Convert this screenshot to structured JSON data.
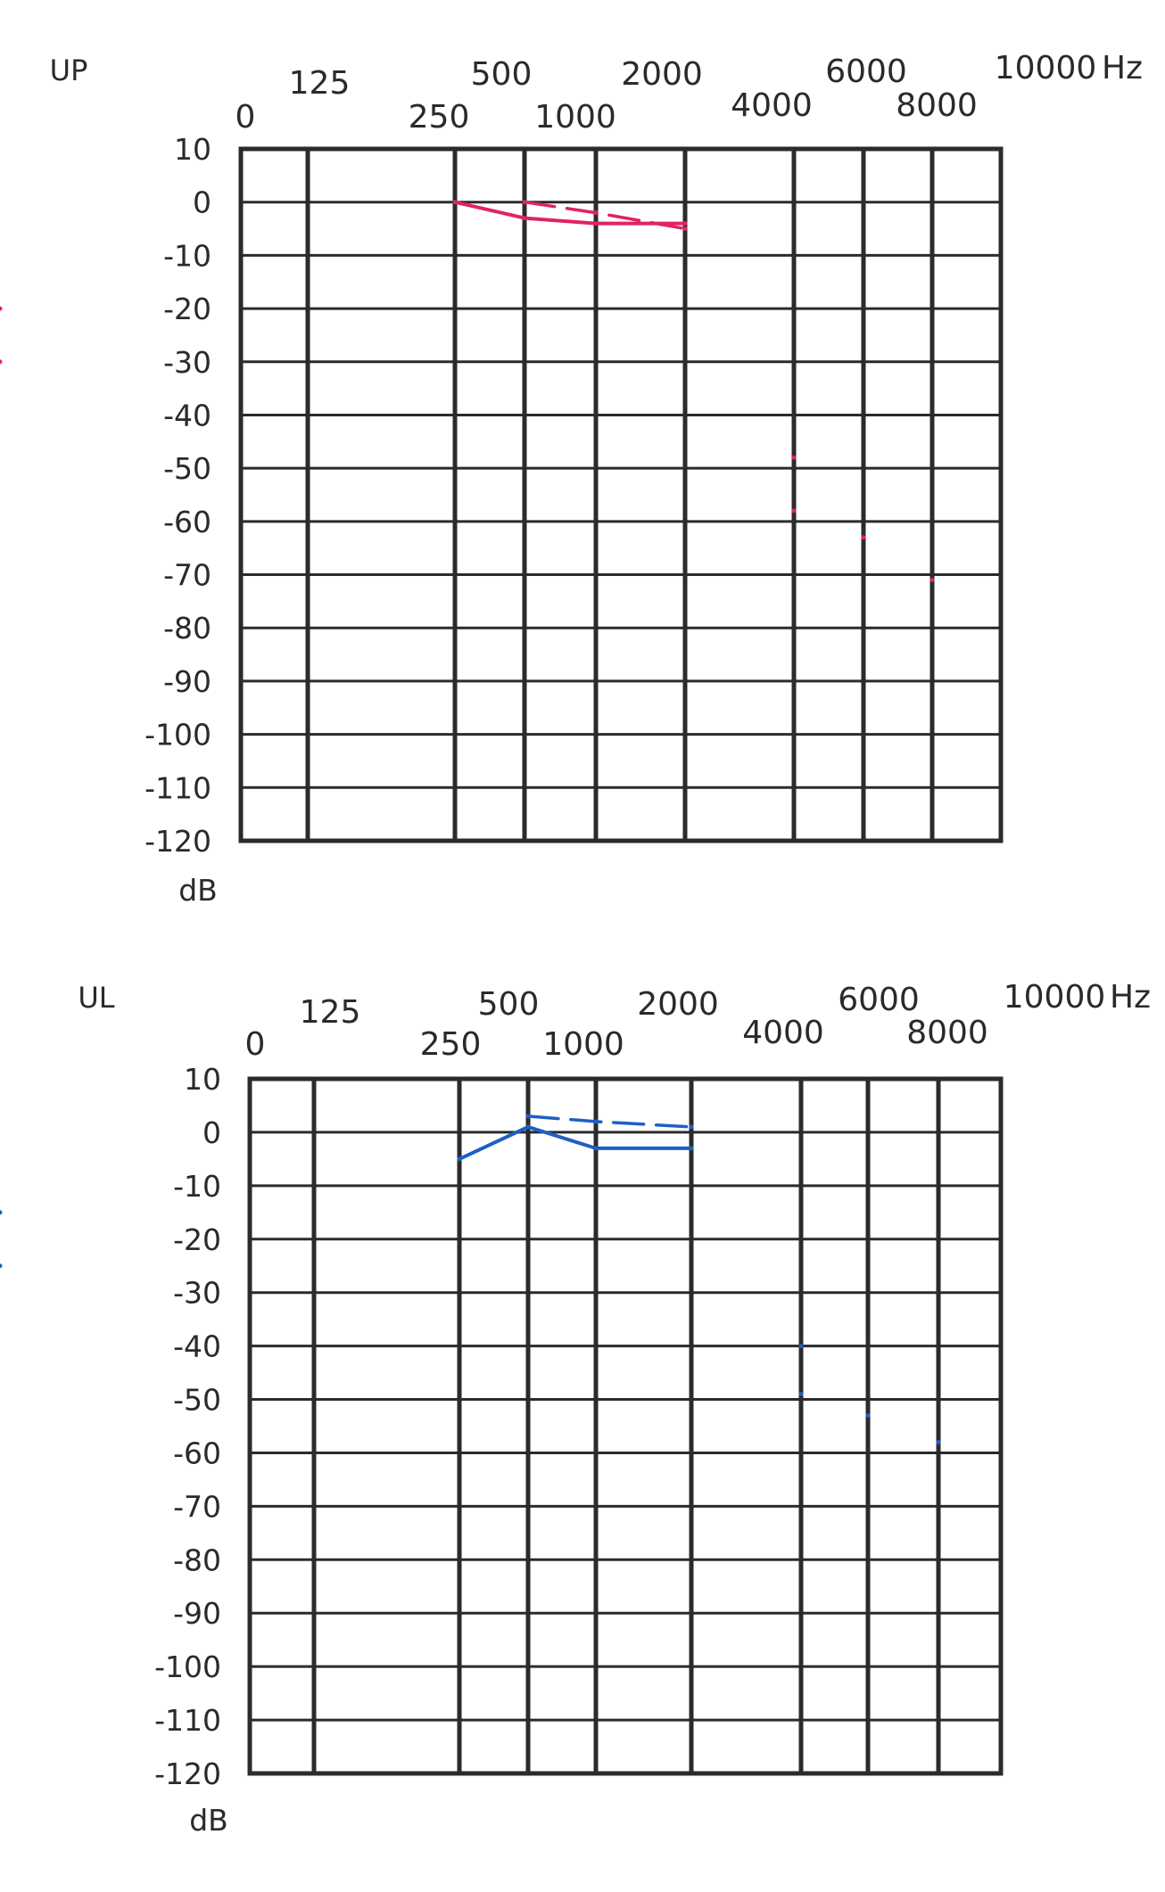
{
  "chart_data": [
    {
      "type": "line",
      "title": "UP",
      "xunit": "Hz",
      "yunit": "dB",
      "x_tick_labels": [
        "0",
        "125",
        "250",
        "500",
        "1000",
        "2000",
        "4000",
        "6000",
        "8000",
        "10000"
      ],
      "y_tick_labels": [
        "10",
        "0",
        "-10",
        "-20",
        "-30",
        "-40",
        "-50",
        "-60",
        "-70",
        "-80",
        "-90",
        "-100",
        "-110",
        "-120"
      ],
      "ylim": [
        -120,
        10
      ],
      "grid": true,
      "color": "#e0245e",
      "series": [
        {
          "style": "solid",
          "x": [
            "250",
            "500",
            "1000",
            "2000",
            "3000",
            "4000",
            "6000",
            "8000"
          ],
          "values": [
            0,
            -3,
            -4,
            -4,
            -30,
            -58,
            -63,
            -71
          ]
        },
        {
          "style": "dashed",
          "x": [
            "500",
            "1000",
            "2000",
            "3000",
            "4000"
          ],
          "values": [
            0,
            -2,
            -5,
            -20,
            -48
          ]
        }
      ]
    },
    {
      "type": "line",
      "title": "UL",
      "xunit": "Hz",
      "yunit": "dB",
      "x_tick_labels": [
        "0",
        "125",
        "250",
        "500",
        "1000",
        "2000",
        "4000",
        "6000",
        "8000",
        "10000"
      ],
      "y_tick_labels": [
        "10",
        "0",
        "-10",
        "-20",
        "-30",
        "-40",
        "-50",
        "-60",
        "-70",
        "-80",
        "-90",
        "-100",
        "-110",
        "-120"
      ],
      "ylim": [
        -120,
        10
      ],
      "grid": true,
      "color": "#1f5fc4",
      "series": [
        {
          "style": "solid",
          "x": [
            "250",
            "500",
            "1000",
            "2000",
            "3000",
            "4000",
            "6000",
            "8000"
          ],
          "values": [
            -5,
            1,
            -3,
            -3,
            -25,
            -49,
            -53,
            -58
          ]
        },
        {
          "style": "dashed",
          "x": [
            "500",
            "1000",
            "2000",
            "3000",
            "4000"
          ],
          "values": [
            3,
            2,
            1,
            -15,
            -40
          ]
        }
      ]
    }
  ]
}
